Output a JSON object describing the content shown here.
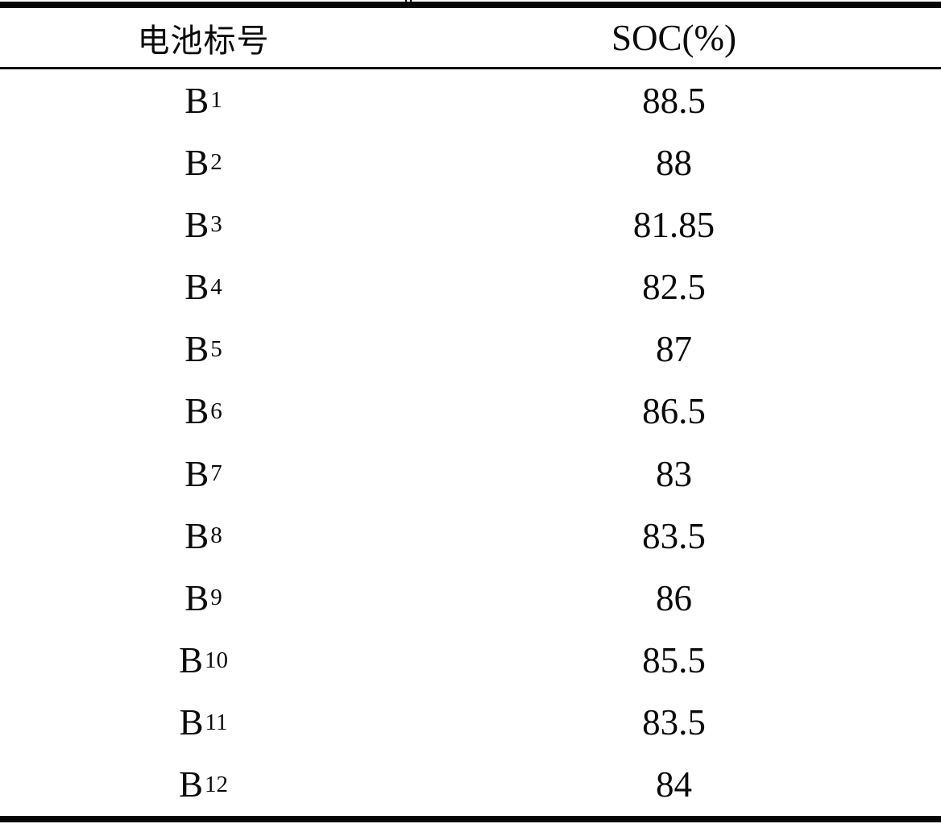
{
  "page": {
    "background": "#ffffff",
    "text_color": "#0a0a0a",
    "rule_color": "#060606"
  },
  "table": {
    "header": {
      "battery_label": "电池标号",
      "soc_label": "SOC(%)"
    },
    "rows": [
      {
        "label_base": "B",
        "label_sub": "1",
        "soc": "88.5"
      },
      {
        "label_base": "B",
        "label_sub": "2",
        "soc": "88"
      },
      {
        "label_base": "B",
        "label_sub": "3",
        "soc": "81.85"
      },
      {
        "label_base": "B",
        "label_sub": "4",
        "soc": "82.5"
      },
      {
        "label_base": "B",
        "label_sub": "5",
        "soc": "87"
      },
      {
        "label_base": "B",
        "label_sub": "6",
        "soc": "86.5"
      },
      {
        "label_base": "B",
        "label_sub": "7",
        "soc": "83"
      },
      {
        "label_base": "B",
        "label_sub": "8",
        "soc": "83.5"
      },
      {
        "label_base": "B",
        "label_sub": "9",
        "soc": "86"
      },
      {
        "label_base": "B",
        "label_sub": "10",
        "soc": "85.5"
      },
      {
        "label_base": "B",
        "label_sub": "11",
        "soc": "83.5"
      },
      {
        "label_base": "B",
        "label_sub": "12",
        "soc": "84"
      }
    ]
  },
  "chart_data": {
    "type": "table",
    "columns": [
      "电池标号",
      "SOC(%)"
    ],
    "rows": [
      [
        "B1",
        88.5
      ],
      [
        "B2",
        88
      ],
      [
        "B3",
        81.85
      ],
      [
        "B4",
        82.5
      ],
      [
        "B5",
        87
      ],
      [
        "B6",
        86.5
      ],
      [
        "B7",
        83
      ],
      [
        "B8",
        83.5
      ],
      [
        "B9",
        86
      ],
      [
        "B10",
        85.5
      ],
      [
        "B11",
        83.5
      ],
      [
        "B12",
        84
      ]
    ]
  }
}
